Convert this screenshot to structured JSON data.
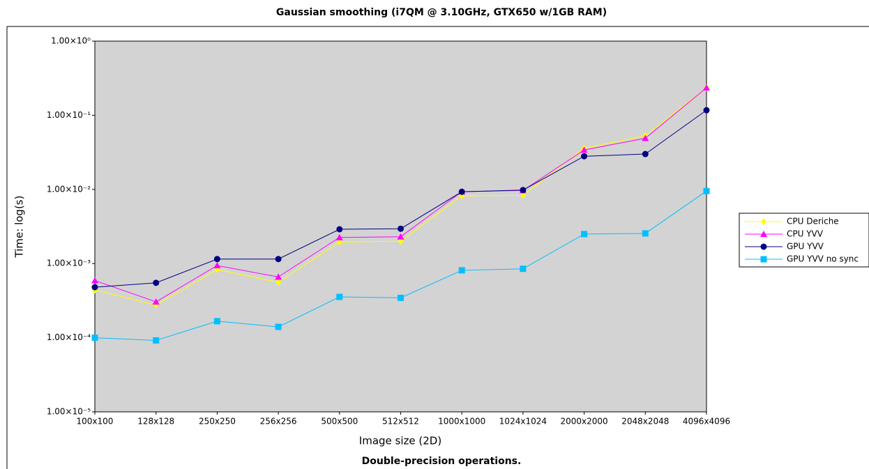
{
  "chart_data": {
    "type": "line",
    "title": "Gaussian smoothing (i7QM @ 3.10GHz, GTX650 w/1GB RAM)",
    "caption": "Double-precision operations.",
    "x_label": "Image size (2D)",
    "y_label": "Time: log(s)",
    "log_scale": true,
    "plot_background": "#d3d3d3",
    "legend_position": "right",
    "categories": [
      "100x100",
      "128x128",
      "250x250",
      "256x256",
      "500x500",
      "512x512",
      "1000x1000",
      "1024x1024",
      "2000x2000",
      "2048x2048",
      "4096x4096"
    ],
    "ylim": [
      1e-05,
      1
    ],
    "yticks": [
      {
        "value": 1e-05,
        "label": "1.00×10⁻⁵"
      },
      {
        "value": 0.0001,
        "label": "1.00×10⁻⁴"
      },
      {
        "value": 0.001,
        "label": "1.00×10⁻³"
      },
      {
        "value": 0.01,
        "label": "1.00×10⁻²"
      },
      {
        "value": 0.1,
        "label": "1.00×10⁻¹"
      },
      {
        "value": 1,
        "label": "1.00×10⁰"
      }
    ],
    "series": [
      {
        "name": "CPU Deriche",
        "color": "#ffff00",
        "marker": "diamond",
        "values": [
          0.00044,
          0.000275,
          0.00083,
          0.00056,
          0.00195,
          0.002,
          0.0082,
          0.0083,
          0.036,
          0.053,
          0.235
        ]
      },
      {
        "name": "CPU YVV",
        "color": "#ff00ff",
        "marker": "triangle",
        "values": [
          0.00059,
          0.000305,
          0.00094,
          0.00066,
          0.00225,
          0.0023,
          0.0093,
          0.0097,
          0.034,
          0.049,
          0.235
        ]
      },
      {
        "name": "GPU YVV",
        "color": "#000080",
        "marker": "circle",
        "values": [
          0.00048,
          0.00055,
          0.00115,
          0.00115,
          0.0029,
          0.00295,
          0.0093,
          0.0098,
          0.028,
          0.03,
          0.117
        ]
      },
      {
        "name": "GPU YVV no sync",
        "color": "#00bfff",
        "marker": "square",
        "values": [
          0.0001,
          9.2e-05,
          0.000167,
          0.00014,
          0.000355,
          0.000345,
          0.00081,
          0.00085,
          0.0025,
          0.00255,
          0.0095
        ]
      }
    ]
  }
}
